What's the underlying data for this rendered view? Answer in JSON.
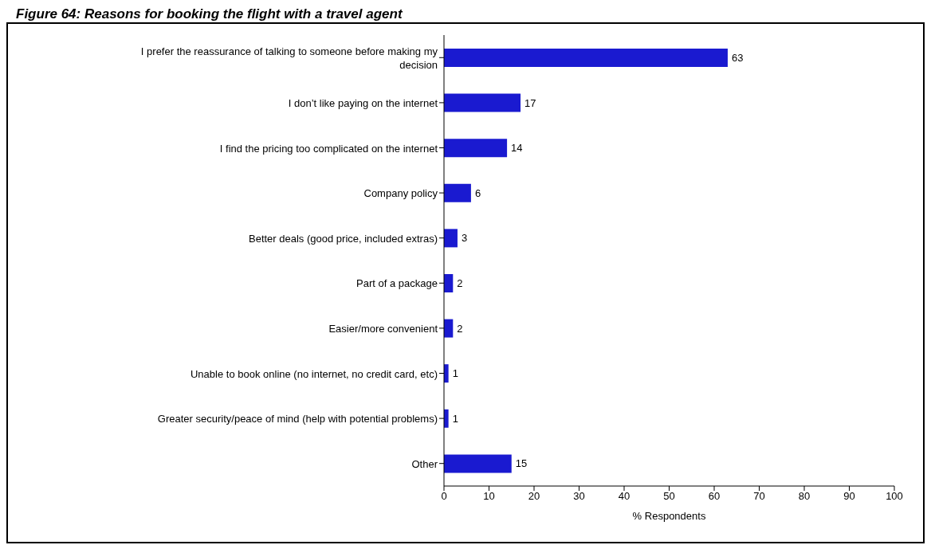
{
  "chart_data": {
    "type": "bar",
    "orientation": "horizontal",
    "title": "Figure 64: Reasons for booking the flight with a travel agent",
    "xlabel": "% Respondents",
    "categories": [
      "I prefer the reassurance of talking to someone before making my decision",
      "I don’t like paying on the internet",
      "I find the pricing too complicated on the internet",
      "Company policy",
      "Better deals (good price, included extras)",
      "Part of a package",
      "Easier/more convenient",
      "Unable to book online (no internet, no credit card, etc)",
      "Greater security/peace of mind (help with potential problems)",
      "Other"
    ],
    "values": [
      63,
      17,
      14,
      6,
      3,
      2,
      2,
      1,
      1,
      15
    ],
    "color": "#1a1ad0",
    "xlim": [
      0,
      100
    ],
    "xticks": [
      0,
      10,
      20,
      30,
      40,
      50,
      60,
      70,
      80,
      90,
      100
    ],
    "data_labels": true
  }
}
